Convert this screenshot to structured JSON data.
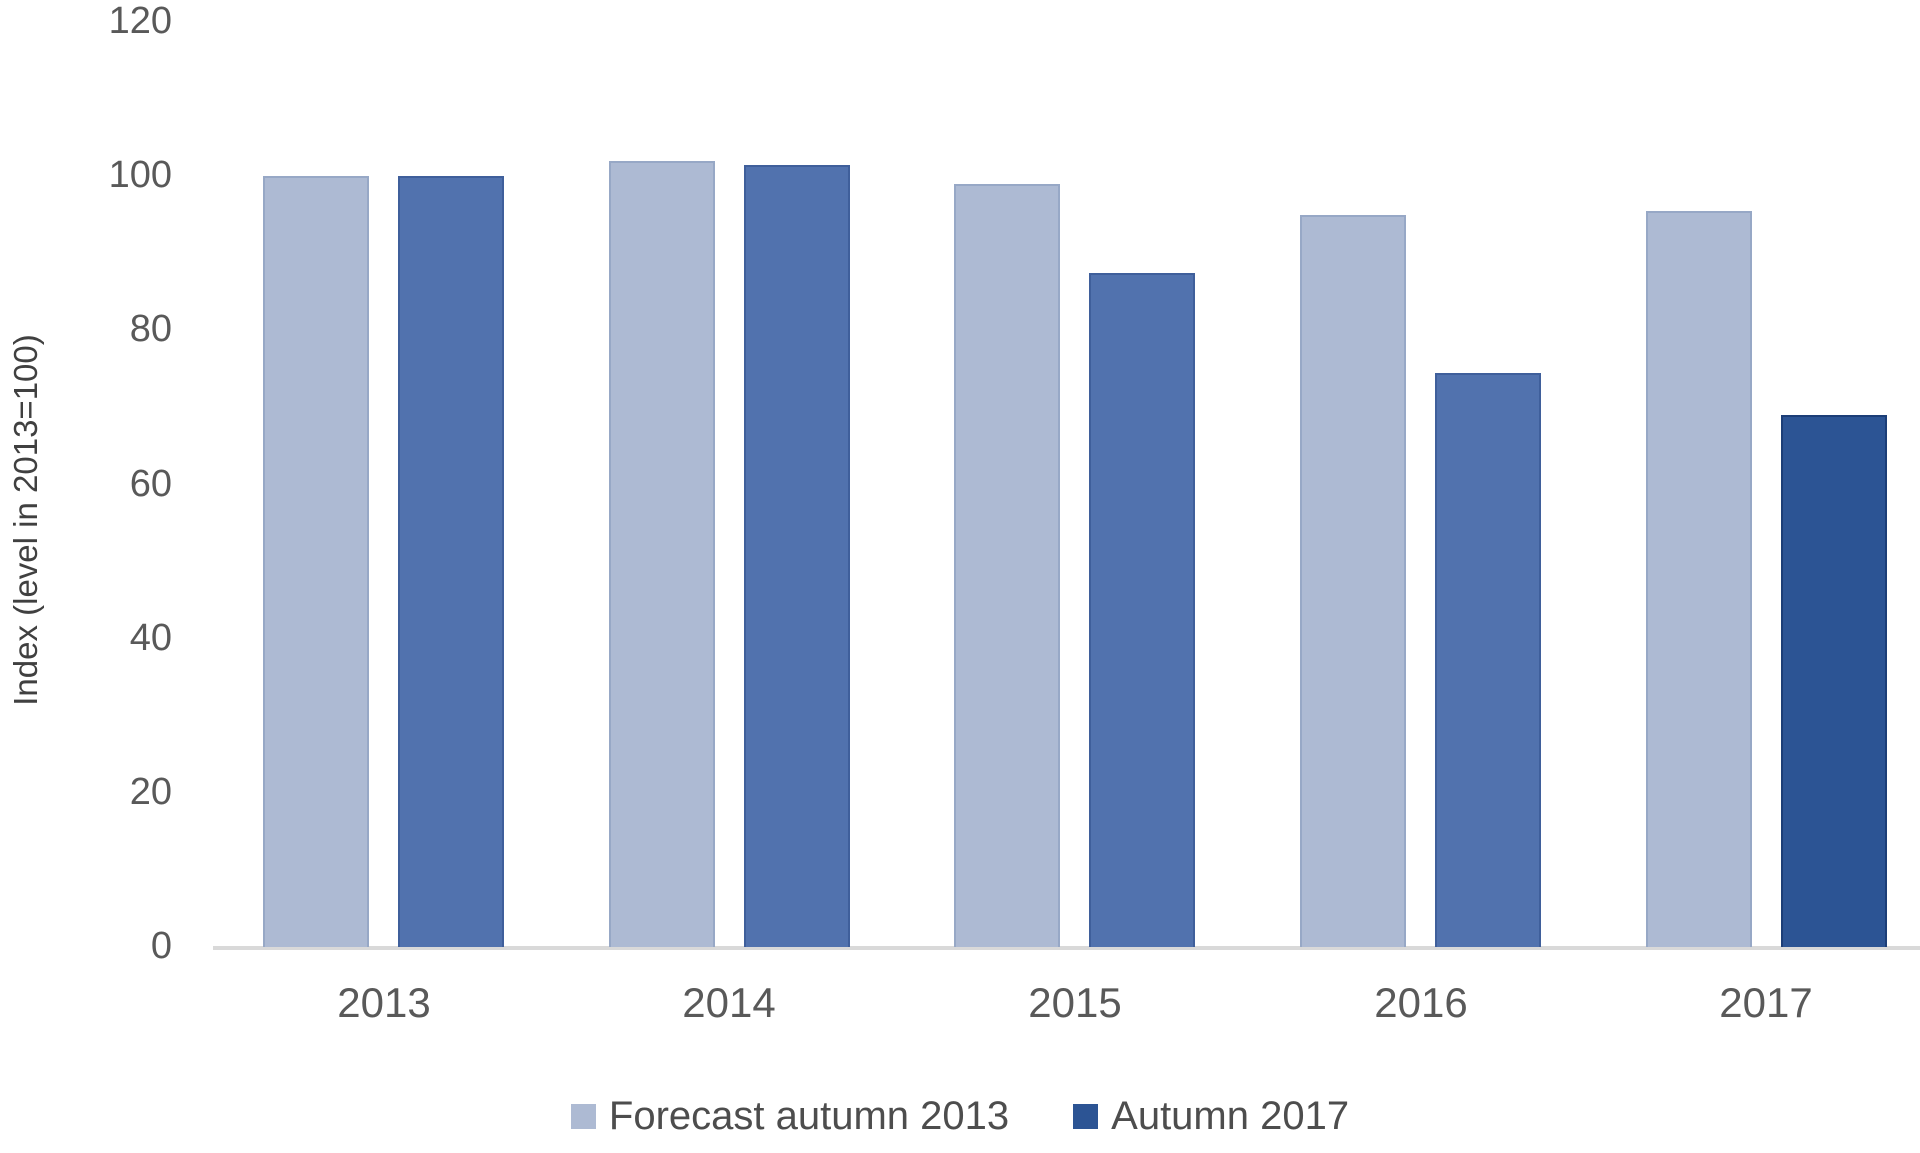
{
  "chart_data": {
    "type": "bar",
    "title": "",
    "categories": [
      "2013",
      "2014",
      "2015",
      "2016",
      "2017"
    ],
    "series": [
      {
        "name": "Forecast autumn 2013",
        "color": "#adbad3",
        "values": [
          100,
          102,
          99,
          95,
          95.5
        ]
      },
      {
        "name": "Autumn 2017",
        "color": "#5172ae",
        "last_bar_color": "#2c5494",
        "last_bar_border": "rgba(18, 48, 100, 0.6)",
        "values": [
          100,
          101.5,
          87.5,
          74.5,
          69
        ]
      }
    ],
    "ylabel": "Index (level in 2013=100)",
    "xlabel": "",
    "ylim": [
      0,
      120
    ],
    "yticks": [
      0,
      20,
      40,
      60,
      80,
      100,
      120
    ],
    "grid": false,
    "legend_position": "bottom",
    "legend": [
      {
        "label": "Forecast autumn 2013",
        "color": "#adbad3"
      },
      {
        "label": "Autumn 2017",
        "color": "#2c5494"
      }
    ],
    "axis_line_color": "#d9d9d9",
    "tick_color": "#595959",
    "axis_title_color": "#404040"
  }
}
